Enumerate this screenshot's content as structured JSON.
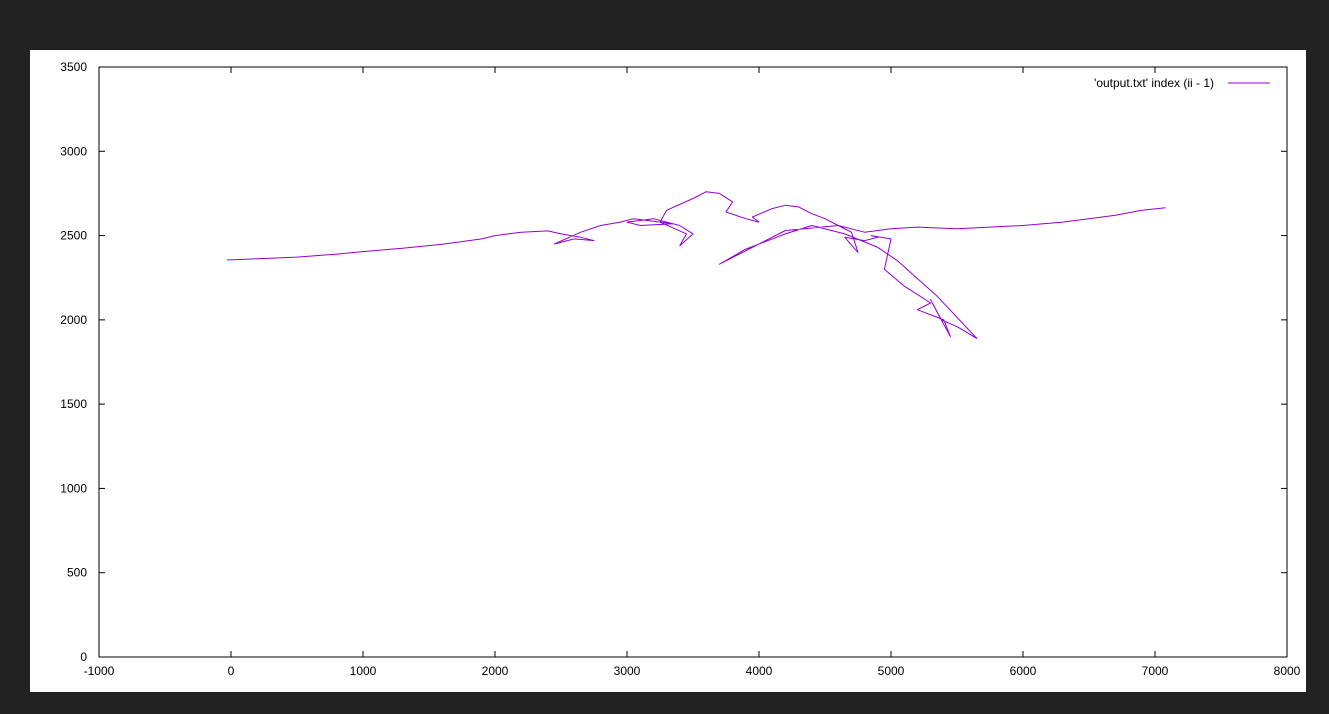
{
  "colors": {
    "frame": "#222222",
    "background": "#ffffff",
    "axis": "#000000",
    "series": "#9400d3"
  },
  "chart_data": {
    "type": "line",
    "title": "",
    "xlabel": "",
    "ylabel": "",
    "xlim": [
      -1000,
      8000
    ],
    "ylim": [
      0,
      3500
    ],
    "x_ticks": [
      -1000,
      0,
      1000,
      2000,
      3000,
      4000,
      5000,
      6000,
      7000,
      8000
    ],
    "y_ticks": [
      0,
      500,
      1000,
      1500,
      2000,
      2500,
      3000,
      3500
    ],
    "grid": false,
    "legend_position": "top-right",
    "series": [
      {
        "name": "'output.txt' index (ii - 1)",
        "color": "#9400d3",
        "x": [
          -30,
          200,
          500,
          800,
          1000,
          1300,
          1600,
          1900,
          2000,
          2200,
          2400,
          2500,
          2650,
          2750,
          2600,
          2450,
          2650,
          2800,
          2950,
          3050,
          3150,
          3250,
          3350,
          3100,
          3000,
          3200,
          3400,
          3500,
          3400,
          3450,
          3250,
          3300,
          3500,
          3600,
          3700,
          3800,
          3750,
          3900,
          4000,
          3950,
          4100,
          4200,
          4300,
          4400,
          4500,
          4600,
          4700,
          4750,
          4650,
          4800,
          4900,
          4850,
          5000,
          4950,
          5100,
          5300,
          5200,
          5400,
          5450,
          5300,
          5380,
          5500,
          5650,
          5350,
          5050,
          4900,
          4650,
          4400,
          4200,
          3900,
          3700,
          4200,
          4600,
          4800,
          5000,
          5200,
          5500,
          6000,
          6300,
          6500,
          6700,
          6900,
          7080
        ],
        "y": [
          2355,
          2362,
          2372,
          2390,
          2405,
          2425,
          2448,
          2480,
          2500,
          2520,
          2528,
          2510,
          2490,
          2470,
          2480,
          2450,
          2520,
          2560,
          2580,
          2600,
          2590,
          2580,
          2570,
          2560,
          2580,
          2600,
          2560,
          2510,
          2440,
          2510,
          2580,
          2650,
          2720,
          2760,
          2750,
          2700,
          2640,
          2600,
          2580,
          2610,
          2660,
          2680,
          2670,
          2630,
          2600,
          2560,
          2520,
          2400,
          2490,
          2470,
          2490,
          2500,
          2480,
          2300,
          2200,
          2100,
          2060,
          2000,
          1900,
          2120,
          2000,
          1960,
          1890,
          2140,
          2350,
          2430,
          2510,
          2560,
          2510,
          2420,
          2330,
          2530,
          2560,
          2520,
          2540,
          2550,
          2540,
          2560,
          2580,
          2600,
          2620,
          2650,
          2665
        ]
      }
    ]
  }
}
